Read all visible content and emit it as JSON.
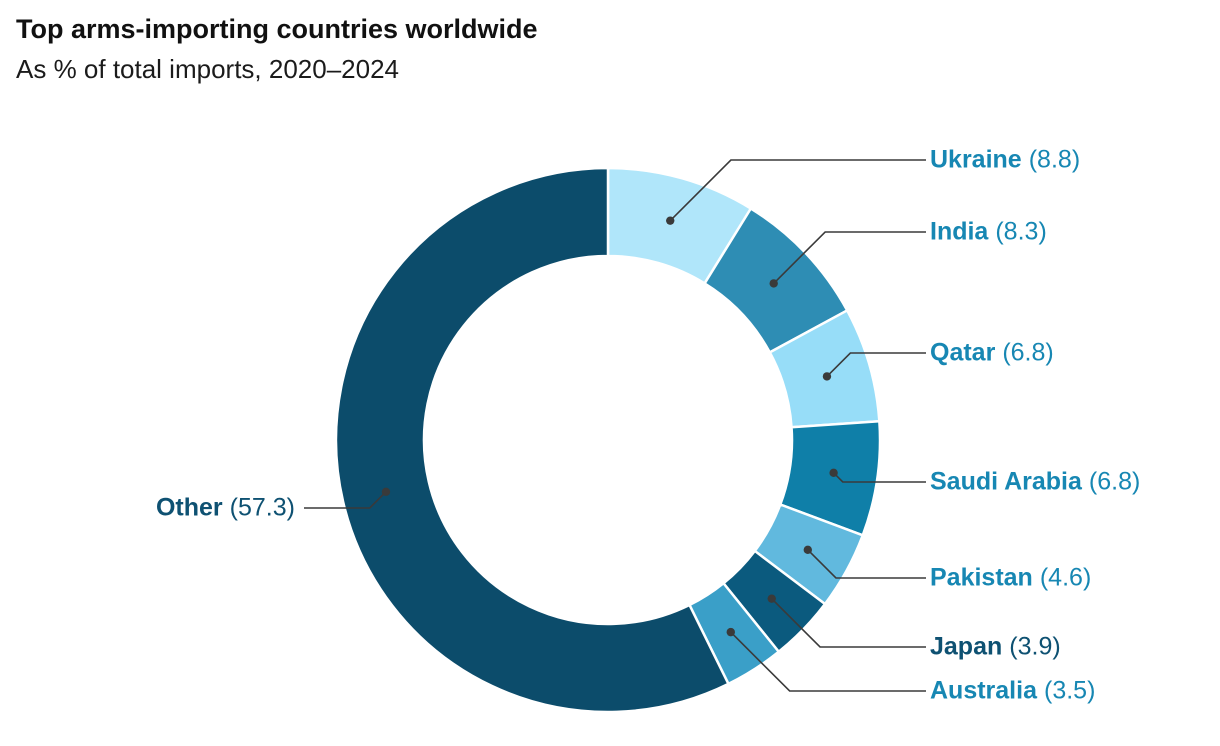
{
  "header": {
    "title": "Top arms-importing countries worldwide",
    "subtitle": "As % of total imports, 2020–2024"
  },
  "chart_data": {
    "type": "pie",
    "variant": "donut",
    "title": "Top arms-importing countries worldwide",
    "subtitle": "As % of total imports, 2020–2024",
    "unit": "% of total imports",
    "start_angle": "top",
    "direction": "clockwise",
    "leader_color": "#3a3a3a",
    "slices": [
      {
        "label": "Ukraine",
        "value": 8.8,
        "color": "#b0e6fa",
        "label_color": "#1787b3"
      },
      {
        "label": "India",
        "value": 8.3,
        "color": "#2e8db4",
        "label_color": "#1787b3"
      },
      {
        "label": "Qatar",
        "value": 6.8,
        "color": "#97ddf8",
        "label_color": "#1787b3"
      },
      {
        "label": "Saudi Arabia",
        "value": 6.8,
        "color": "#0f7fa8",
        "label_color": "#1787b3"
      },
      {
        "label": "Pakistan",
        "value": 4.6,
        "color": "#61b9de",
        "label_color": "#1787b3"
      },
      {
        "label": "Japan",
        "value": 3.9,
        "color": "#0b5a7e",
        "label_color": "#0e5172"
      },
      {
        "label": "Australia",
        "value": 3.5,
        "color": "#3a9fc8",
        "label_color": "#1787b3"
      },
      {
        "label": "Other",
        "value": 57.3,
        "color": "#0c4c6b",
        "label_color": "#0e5172"
      }
    ]
  }
}
